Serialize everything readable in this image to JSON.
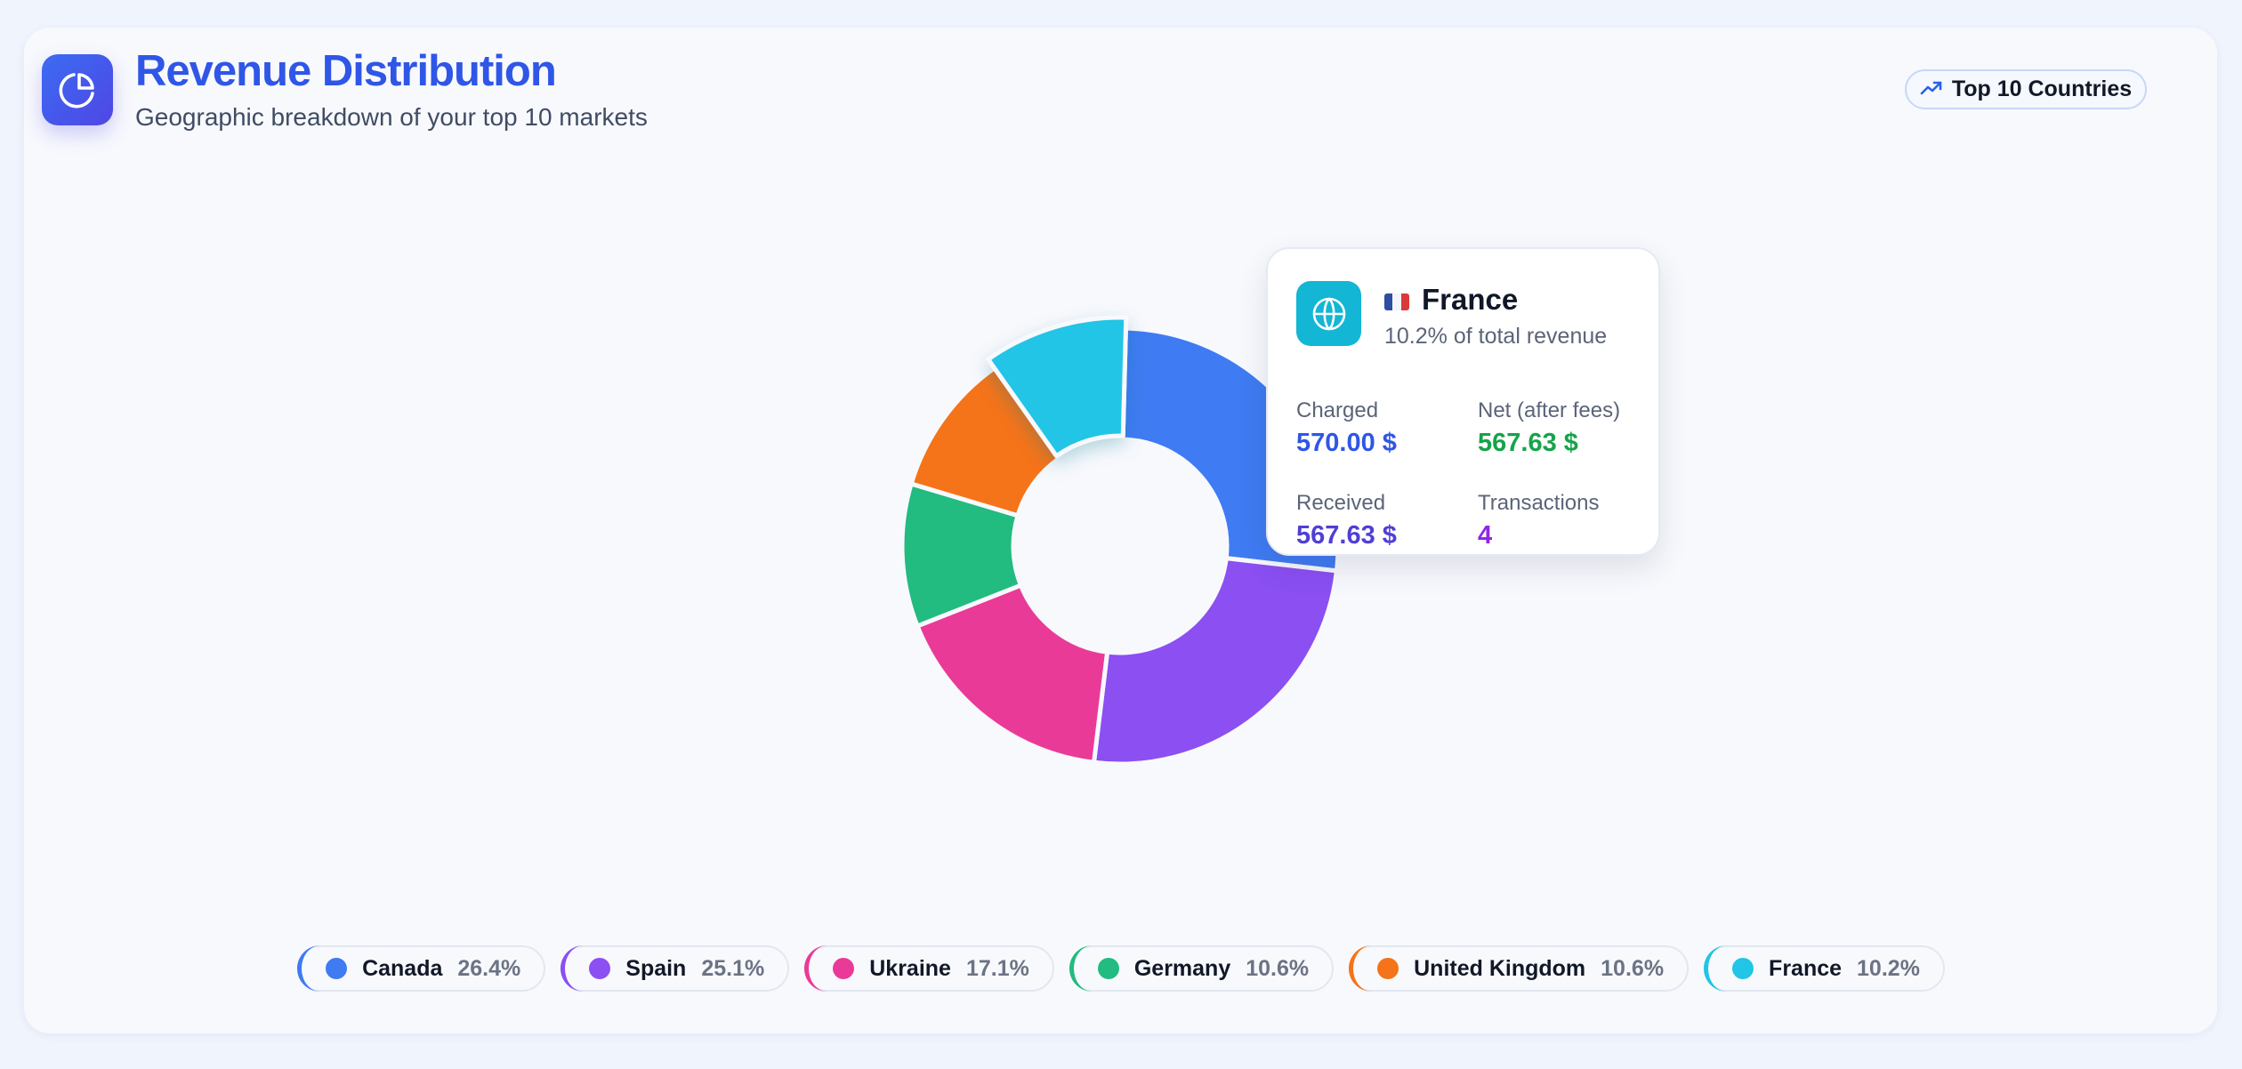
{
  "header": {
    "title": "Revenue Distribution",
    "subtitle": "Geographic breakdown of your top 10 markets",
    "icon": "pie-chart-icon",
    "badge_icon": "trending-up-icon",
    "badge_label": "Top 10 Countries"
  },
  "colors": {
    "title": "#2f56e6",
    "accent": "#4f46e5"
  },
  "chart_data": {
    "type": "pie",
    "variant": "donut",
    "title": "",
    "categories": [
      "Canada",
      "Spain",
      "Ukraine",
      "Germany",
      "United Kingdom",
      "France"
    ],
    "values": [
      26.4,
      25.1,
      17.1,
      10.6,
      10.6,
      10.2
    ],
    "unit": "%",
    "colors": [
      "#3f7bf2",
      "#8b4ff2",
      "#ea3a98",
      "#22bb80",
      "#f57319",
      "#21c5e6"
    ],
    "highlighted": "France",
    "legend_position": "bottom"
  },
  "tooltip": {
    "icon": "globe-icon",
    "flag": "france-flag-icon",
    "country": "France",
    "share": "10.2% of total revenue",
    "charged_label": "Charged",
    "charged_value": "570.00 $",
    "net_label": "Net (after fees)",
    "net_value": "567.63 $",
    "received_label": "Received",
    "received_value": "567.63 $",
    "transactions_label": "Transactions",
    "transactions_value": "4",
    "colors": {
      "charged": "#2f56e6",
      "net": "#16a34a",
      "received": "#4f3fd6",
      "transactions": "#9325e6"
    }
  },
  "legend": [
    {
      "name": "Canada",
      "percent": "26.4%",
      "color": "#3f7bf2"
    },
    {
      "name": "Spain",
      "percent": "25.1%",
      "color": "#8b4ff2"
    },
    {
      "name": "Ukraine",
      "percent": "17.1%",
      "color": "#ea3a98"
    },
    {
      "name": "Germany",
      "percent": "10.6%",
      "color": "#22bb80"
    },
    {
      "name": "United Kingdom",
      "percent": "10.6%",
      "color": "#f57319"
    },
    {
      "name": "France",
      "percent": "10.2%",
      "color": "#21c5e6"
    }
  ]
}
